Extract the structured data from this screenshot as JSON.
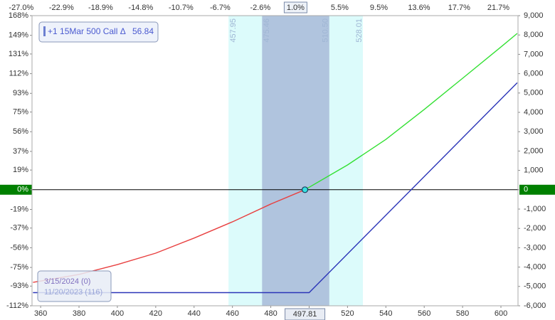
{
  "chart_data": {
    "type": "line",
    "position": {
      "label": "+1 15Mar 500 Call Δ",
      "value": 56.84
    },
    "xlim": [
      355.5,
      608.9
    ],
    "xticks": [
      360,
      380,
      400,
      420,
      440,
      460,
      480,
      500,
      520,
      540,
      560,
      580,
      600
    ],
    "x2lim": [
      -25.9,
      23.7
    ],
    "x2ticks": [
      {
        "value": -27.0,
        "label": "-27.0%"
      },
      {
        "value": -22.9,
        "label": "-22.9%"
      },
      {
        "value": -18.9,
        "label": "-18.9%"
      },
      {
        "value": -14.8,
        "label": "-14.8%"
      },
      {
        "value": -10.7,
        "label": "-10.7%"
      },
      {
        "value": -6.7,
        "label": "-6.7%"
      },
      {
        "value": -2.6,
        "label": "-2.6%"
      },
      {
        "value": 5.5,
        "label": "5.5%"
      },
      {
        "value": 9.5,
        "label": "9.5%"
      },
      {
        "value": 13.6,
        "label": "13.6%"
      },
      {
        "value": 17.7,
        "label": "17.7%"
      },
      {
        "value": 21.7,
        "label": "21.7%"
      }
    ],
    "x2_current": {
      "value": 1.0,
      "label": "1.0%"
    },
    "ylim": [
      -112,
      168
    ],
    "yticks": [
      {
        "value": 168,
        "label": "168%"
      },
      {
        "value": 149,
        "label": "149%"
      },
      {
        "value": 131,
        "label": "131%"
      },
      {
        "value": 112,
        "label": "112%"
      },
      {
        "value": 93,
        "label": "93%"
      },
      {
        "value": 75,
        "label": "75%"
      },
      {
        "value": 56,
        "label": "56%"
      },
      {
        "value": 37,
        "label": "37%"
      },
      {
        "value": 19,
        "label": "19%"
      },
      {
        "value": 0,
        "label": "0%"
      },
      {
        "value": -19,
        "label": "-19%"
      },
      {
        "value": -37,
        "label": "-37%"
      },
      {
        "value": -56,
        "label": "-56%"
      },
      {
        "value": -75,
        "label": "-75%"
      },
      {
        "value": -93,
        "label": "-93%"
      },
      {
        "value": -112,
        "label": "-112%"
      }
    ],
    "y2lim": [
      -6000,
      9000
    ],
    "y2ticks": [
      {
        "value": 9000,
        "label": "9,000"
      },
      {
        "value": 8000,
        "label": "8,000"
      },
      {
        "value": 7000,
        "label": "7,000"
      },
      {
        "value": 6000,
        "label": "6,000"
      },
      {
        "value": 5000,
        "label": "5,000"
      },
      {
        "value": 4000,
        "label": "4,000"
      },
      {
        "value": 3000,
        "label": "3,000"
      },
      {
        "value": 2000,
        "label": "2,000"
      },
      {
        "value": 1000,
        "label": "1,000"
      },
      0,
      {
        "value": -1000,
        "label": "-1,000"
      },
      {
        "value": -2000,
        "label": "-2,000"
      },
      {
        "value": -3000,
        "label": "-3,000"
      },
      {
        "value": -4000,
        "label": "-4,000"
      },
      {
        "value": -5000,
        "label": "-5,000"
      },
      {
        "value": -6000,
        "label": "-6,000"
      }
    ],
    "zero_color": "#008000",
    "grid": false,
    "bands": [
      {
        "from": {
          "value": 457.95,
          "label": "457.95"
        },
        "to": {
          "value": 528.01,
          "label": "528.01"
        },
        "color": "#dcfbfb"
      },
      {
        "from": {
          "value": 475.46,
          "label": "475.46"
        },
        "to": {
          "value": 510.5,
          "label": "510.50"
        },
        "color": "#b0c4de"
      }
    ],
    "current": {
      "value": 497.81,
      "label": "497.81"
    },
    "series": [
      {
        "name": "3/15/2024 (0)",
        "color": "#2b35b8",
        "axis": "y2",
        "x": [
          356,
          500,
          608.5
        ],
        "values": [
          -5320,
          -5320,
          5530
        ]
      },
      {
        "name": "11/20/2023 (116)",
        "axis": "y2",
        "color": "#33e033",
        "loss_color": "#e84040",
        "x": [
          356,
          380,
          400,
          420,
          440,
          460,
          480,
          497.81,
          520,
          540,
          560,
          580,
          600,
          608.5
        ],
        "values": [
          -4790,
          -4380,
          -3870,
          -3280,
          -2500,
          -1660,
          -740,
          0,
          1280,
          2600,
          4150,
          5760,
          7380,
          8080
        ]
      }
    ]
  }
}
